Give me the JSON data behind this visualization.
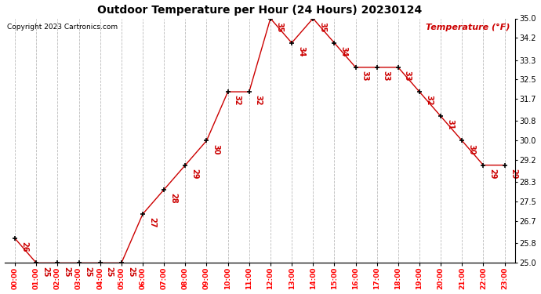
{
  "title": "Outdoor Temperature per Hour (24 Hours) 20230124",
  "copyright": "Copyright 2023 Cartronics.com",
  "legend_label": "Temperature (°F)",
  "hours": [
    "00:00",
    "01:00",
    "02:00",
    "03:00",
    "04:00",
    "05:00",
    "06:00",
    "07:00",
    "08:00",
    "09:00",
    "10:00",
    "11:00",
    "12:00",
    "13:00",
    "14:00",
    "15:00",
    "16:00",
    "17:00",
    "18:00",
    "19:00",
    "20:00",
    "21:00",
    "22:00",
    "23:00"
  ],
  "temps": [
    26,
    25,
    25,
    25,
    25,
    25,
    27,
    28,
    29,
    30,
    32,
    32,
    35,
    34,
    35,
    34,
    33,
    33,
    33,
    32,
    31,
    30,
    29,
    29
  ],
  "ylim": [
    25.0,
    35.0
  ],
  "yticks": [
    25.0,
    25.8,
    26.7,
    27.5,
    28.3,
    29.2,
    30.0,
    30.8,
    31.7,
    32.5,
    33.3,
    34.2,
    35.0
  ],
  "line_color": "#cc0000",
  "marker_color": "black",
  "label_color": "#cc0000",
  "title_color": "black",
  "copyright_color": "black",
  "legend_color": "#cc0000",
  "bg_color": "white",
  "grid_color": "#bbbbbb",
  "fig_width": 6.9,
  "fig_height": 3.75,
  "dpi": 100
}
